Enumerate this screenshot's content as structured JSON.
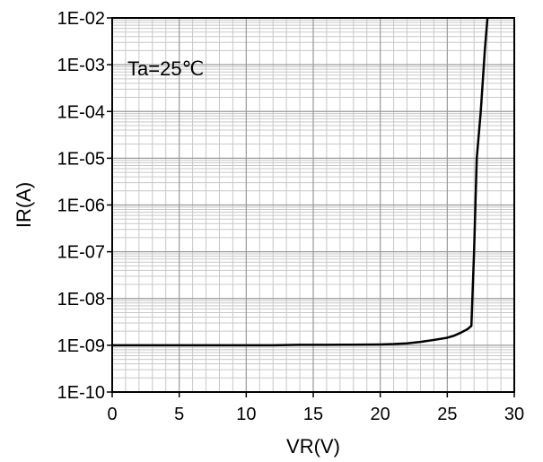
{
  "chart_data": {
    "type": "line",
    "title": "",
    "xlabel": "VR(V)",
    "ylabel": "IR(A)",
    "xlim": [
      0,
      30
    ],
    "ylim": [
      1e-10,
      0.01
    ],
    "y_scale": "log",
    "grid": true,
    "x_ticks": [
      0,
      5,
      10,
      15,
      20,
      25,
      30
    ],
    "x_tick_labels": [
      "0",
      "5",
      "10",
      "15",
      "20",
      "25",
      "30"
    ],
    "y_ticks": [
      0.01,
      0.001,
      0.0001,
      1e-05,
      1e-06,
      1e-07,
      1e-08,
      1e-09,
      1e-10
    ],
    "y_tick_labels": [
      "1E-02",
      "1E-03",
      "1E-04",
      "1E-05",
      "1E-06",
      "1E-07",
      "1E-08",
      "1E-09",
      "1E-10"
    ],
    "annotation": "Ta=25℃",
    "series": [
      {
        "x": [
          0,
          1,
          2,
          3,
          4,
          5,
          6,
          8,
          10,
          12,
          14,
          16,
          18,
          20,
          21,
          22,
          23,
          24,
          25,
          25.5,
          26,
          26.5,
          26.8,
          27,
          27.2,
          27.5,
          27.8,
          28
        ],
        "y": [
          1e-09,
          1e-09,
          1e-09,
          1e-09,
          1e-09,
          1e-09,
          1e-09,
          1e-09,
          1e-09,
          1e-09,
          1.02e-09,
          1.02e-09,
          1.03e-09,
          1.04e-09,
          1.06e-09,
          1.1e-09,
          1.18e-09,
          1.3e-09,
          1.45e-09,
          1.6e-09,
          1.85e-09,
          2.2e-09,
          2.6e-09,
          1e-07,
          1e-05,
          0.0001,
          0.002,
          0.01
        ]
      }
    ]
  }
}
